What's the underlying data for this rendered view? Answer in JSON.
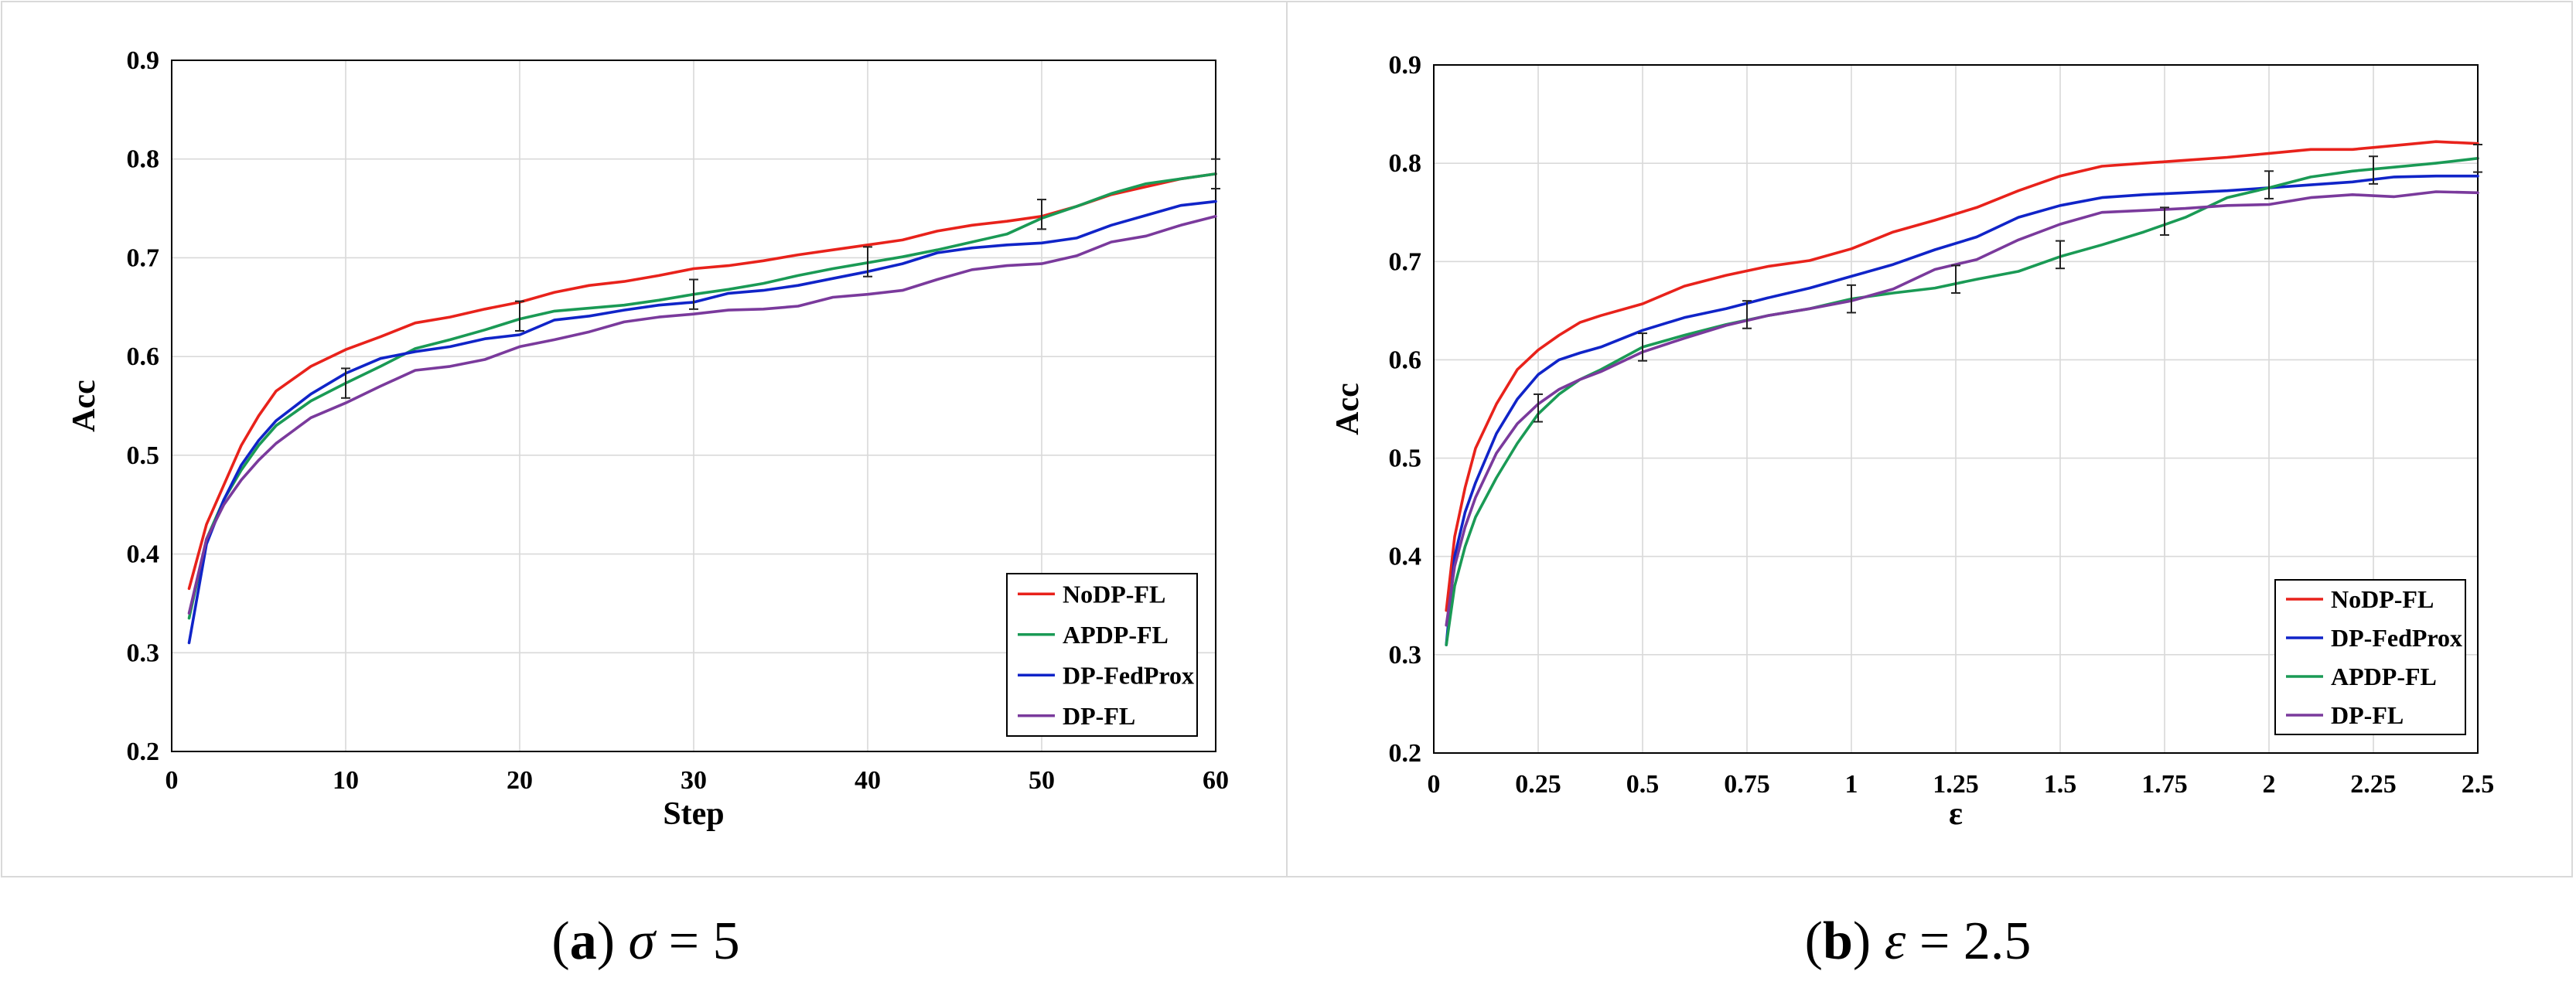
{
  "chart_data": [
    {
      "type": "line",
      "panel_label": "a",
      "caption_symbol": "σ",
      "caption_value": "5",
      "title": "",
      "xlabel": "Step",
      "ylabel": "Acc",
      "xlim": [
        0,
        60
      ],
      "ylim": [
        0.2,
        0.9
      ],
      "xticks": [
        0,
        10,
        20,
        30,
        40,
        50,
        60
      ],
      "xtick_labels": [
        "0",
        "10",
        "20",
        "30",
        "40",
        "50",
        "60"
      ],
      "yticks": [
        0.2,
        0.3,
        0.4,
        0.5,
        0.6,
        0.7,
        0.8,
        0.9
      ],
      "ytick_labels": [
        "0.2",
        "0.3",
        "0.4",
        "0.5",
        "0.6",
        "0.7",
        "0.8",
        "0.9"
      ],
      "grid": true,
      "legend_position": "bottom-right",
      "series": [
        {
          "name": "NoDP-FL",
          "color": "#e8221b",
          "x": [
            1,
            2,
            3,
            4,
            5,
            6,
            8,
            10,
            12,
            14,
            16,
            18,
            20,
            22,
            24,
            26,
            28,
            30,
            32,
            34,
            36,
            38,
            40,
            42,
            44,
            46,
            48,
            50,
            52,
            54,
            56,
            58,
            60
          ],
          "y": [
            0.365,
            0.43,
            0.47,
            0.51,
            0.54,
            0.565,
            0.59,
            0.607,
            0.62,
            0.634,
            0.64,
            0.648,
            0.655,
            0.665,
            0.672,
            0.676,
            0.682,
            0.689,
            0.692,
            0.697,
            0.703,
            0.708,
            0.713,
            0.718,
            0.727,
            0.733,
            0.737,
            0.742,
            0.752,
            0.764,
            0.772,
            0.78,
            0.785
          ]
        },
        {
          "name": "APDP-FL",
          "color": "#1a9a55",
          "x": [
            1,
            2,
            3,
            4,
            5,
            6,
            8,
            10,
            12,
            14,
            16,
            18,
            20,
            22,
            24,
            26,
            28,
            30,
            32,
            34,
            36,
            38,
            40,
            42,
            44,
            46,
            48,
            50,
            52,
            54,
            56,
            58,
            60
          ],
          "y": [
            0.335,
            0.415,
            0.455,
            0.485,
            0.51,
            0.53,
            0.555,
            0.573,
            0.59,
            0.608,
            0.617,
            0.627,
            0.638,
            0.646,
            0.649,
            0.652,
            0.657,
            0.663,
            0.668,
            0.674,
            0.682,
            0.689,
            0.695,
            0.701,
            0.708,
            0.716,
            0.724,
            0.74,
            0.752,
            0.765,
            0.775,
            0.78,
            0.785
          ]
        },
        {
          "name": "DP-FedProx",
          "color": "#1024c8",
          "x": [
            1,
            2,
            3,
            4,
            5,
            6,
            8,
            10,
            12,
            14,
            16,
            18,
            20,
            22,
            24,
            26,
            28,
            30,
            32,
            34,
            36,
            38,
            40,
            42,
            44,
            46,
            48,
            50,
            52,
            54,
            56,
            58,
            60
          ],
          "y": [
            0.31,
            0.41,
            0.455,
            0.49,
            0.515,
            0.535,
            0.562,
            0.583,
            0.598,
            0.605,
            0.61,
            0.618,
            0.622,
            0.637,
            0.641,
            0.647,
            0.652,
            0.655,
            0.664,
            0.667,
            0.672,
            0.679,
            0.686,
            0.694,
            0.705,
            0.71,
            0.713,
            0.715,
            0.72,
            0.733,
            0.743,
            0.753,
            0.757
          ]
        },
        {
          "name": "DP-FL",
          "color": "#7a3a9c",
          "x": [
            1,
            2,
            3,
            4,
            5,
            6,
            8,
            10,
            12,
            14,
            16,
            18,
            20,
            22,
            24,
            26,
            28,
            30,
            32,
            34,
            36,
            38,
            40,
            42,
            44,
            46,
            48,
            50,
            52,
            54,
            56,
            58,
            60
          ],
          "y": [
            0.34,
            0.415,
            0.45,
            0.475,
            0.495,
            0.512,
            0.538,
            0.553,
            0.57,
            0.586,
            0.59,
            0.597,
            0.61,
            0.617,
            0.625,
            0.635,
            0.64,
            0.643,
            0.647,
            0.648,
            0.651,
            0.66,
            0.663,
            0.667,
            0.678,
            0.688,
            0.692,
            0.694,
            0.702,
            0.716,
            0.722,
            0.733,
            0.742
          ]
        }
      ],
      "error_bars": [
        {
          "x": 10,
          "y": 0.573,
          "err": 0.015
        },
        {
          "x": 20,
          "y": 0.641,
          "err": 0.015
        },
        {
          "x": 30,
          "y": 0.663,
          "err": 0.015
        },
        {
          "x": 40,
          "y": 0.696,
          "err": 0.015
        },
        {
          "x": 50,
          "y": 0.744,
          "err": 0.015
        },
        {
          "x": 60,
          "y": 0.785,
          "err": 0.015
        }
      ]
    },
    {
      "type": "line",
      "panel_label": "b",
      "caption_symbol": "ε",
      "caption_value": "2.5",
      "title": "",
      "xlabel": "ε",
      "ylabel": "Acc",
      "xlim": [
        0,
        2.5
      ],
      "ylim": [
        0.2,
        0.9
      ],
      "xticks": [
        0,
        0.25,
        0.5,
        0.75,
        1,
        1.25,
        1.5,
        1.75,
        2,
        2.25,
        2.5
      ],
      "xtick_labels": [
        "0",
        "0.25",
        "0.5",
        "0.75",
        "1",
        "1.25",
        "1.5",
        "1.75",
        "2",
        "2.25",
        "2.5"
      ],
      "yticks": [
        0.2,
        0.3,
        0.4,
        0.5,
        0.6,
        0.7,
        0.8,
        0.9
      ],
      "ytick_labels": [
        "0.2",
        "0.3",
        "0.4",
        "0.5",
        "0.6",
        "0.7",
        "0.8",
        "0.9"
      ],
      "grid": true,
      "legend_position": "bottom-right",
      "series": [
        {
          "name": "NoDP-FL",
          "color": "#e8221b",
          "x": [
            0.03,
            0.05,
            0.075,
            0.1,
            0.15,
            0.2,
            0.25,
            0.3,
            0.35,
            0.4,
            0.5,
            0.6,
            0.7,
            0.8,
            0.9,
            1.0,
            1.1,
            1.2,
            1.3,
            1.4,
            1.5,
            1.6,
            1.7,
            1.8,
            1.9,
            2.0,
            2.1,
            2.2,
            2.3,
            2.4,
            2.5
          ],
          "y": [
            0.345,
            0.42,
            0.47,
            0.51,
            0.555,
            0.59,
            0.61,
            0.625,
            0.638,
            0.645,
            0.657,
            0.675,
            0.686,
            0.695,
            0.701,
            0.713,
            0.73,
            0.742,
            0.755,
            0.772,
            0.787,
            0.797,
            0.8,
            0.803,
            0.806,
            0.81,
            0.814,
            0.814,
            0.818,
            0.822,
            0.82
          ]
        },
        {
          "name": "DP-FedProx",
          "color": "#1024c8",
          "x": [
            0.03,
            0.05,
            0.075,
            0.1,
            0.15,
            0.2,
            0.25,
            0.3,
            0.35,
            0.4,
            0.5,
            0.6,
            0.7,
            0.8,
            0.9,
            1.0,
            1.1,
            1.2,
            1.3,
            1.4,
            1.5,
            1.6,
            1.7,
            1.8,
            1.9,
            2.0,
            2.1,
            2.2,
            2.3,
            2.4,
            2.5
          ],
          "y": [
            0.31,
            0.4,
            0.445,
            0.475,
            0.525,
            0.56,
            0.585,
            0.6,
            0.607,
            0.613,
            0.63,
            0.643,
            0.652,
            0.663,
            0.673,
            0.685,
            0.697,
            0.712,
            0.725,
            0.745,
            0.757,
            0.765,
            0.768,
            0.77,
            0.772,
            0.775,
            0.778,
            0.781,
            0.786,
            0.787,
            0.787
          ]
        },
        {
          "name": "APDP-FL",
          "color": "#1a9a55",
          "x": [
            0.03,
            0.05,
            0.075,
            0.1,
            0.15,
            0.2,
            0.25,
            0.3,
            0.35,
            0.4,
            0.5,
            0.6,
            0.7,
            0.8,
            0.9,
            1.0,
            1.1,
            1.2,
            1.3,
            1.4,
            1.5,
            1.6,
            1.7,
            1.8,
            1.9,
            2.0,
            2.1,
            2.2,
            2.3,
            2.4,
            2.5
          ],
          "y": [
            0.31,
            0.37,
            0.41,
            0.44,
            0.48,
            0.515,
            0.545,
            0.565,
            0.58,
            0.59,
            0.613,
            0.625,
            0.636,
            0.645,
            0.652,
            0.662,
            0.668,
            0.673,
            0.682,
            0.69,
            0.705,
            0.717,
            0.73,
            0.745,
            0.765,
            0.775,
            0.786,
            0.792,
            0.796,
            0.8,
            0.805
          ]
        },
        {
          "name": "DP-FL",
          "color": "#7a3a9c",
          "x": [
            0.03,
            0.05,
            0.075,
            0.1,
            0.15,
            0.2,
            0.25,
            0.3,
            0.35,
            0.4,
            0.5,
            0.6,
            0.7,
            0.8,
            0.9,
            1.0,
            1.1,
            1.2,
            1.3,
            1.4,
            1.5,
            1.6,
            1.7,
            1.8,
            1.9,
            2.0,
            2.1,
            2.2,
            2.3,
            2.4,
            2.5
          ],
          "y": [
            0.33,
            0.39,
            0.43,
            0.46,
            0.505,
            0.535,
            0.555,
            0.57,
            0.58,
            0.588,
            0.608,
            0.622,
            0.635,
            0.645,
            0.652,
            0.66,
            0.672,
            0.692,
            0.702,
            0.722,
            0.738,
            0.75,
            0.752,
            0.754,
            0.757,
            0.758,
            0.765,
            0.768,
            0.766,
            0.771,
            0.77
          ]
        }
      ],
      "error_bars": [
        {
          "x": 0.25,
          "y": 0.551,
          "err": 0.014
        },
        {
          "x": 0.5,
          "y": 0.613,
          "err": 0.014
        },
        {
          "x": 0.75,
          "y": 0.646,
          "err": 0.014
        },
        {
          "x": 1.0,
          "y": 0.662,
          "err": 0.014
        },
        {
          "x": 1.25,
          "y": 0.682,
          "err": 0.014
        },
        {
          "x": 1.5,
          "y": 0.707,
          "err": 0.014
        },
        {
          "x": 1.75,
          "y": 0.741,
          "err": 0.014
        },
        {
          "x": 2.0,
          "y": 0.778,
          "err": 0.014
        },
        {
          "x": 2.25,
          "y": 0.793,
          "err": 0.014
        },
        {
          "x": 2.5,
          "y": 0.805,
          "err": 0.014
        }
      ]
    }
  ]
}
